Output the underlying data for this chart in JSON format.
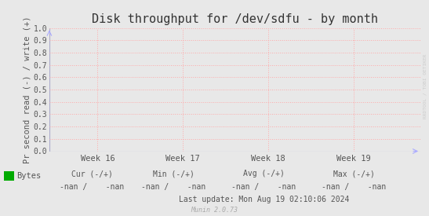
{
  "title": "Disk throughput for /dev/sdfu - by month",
  "ylabel": "Pr second read (-) / write (+)",
  "ylim": [
    0.0,
    1.0
  ],
  "yticks": [
    0.0,
    0.1,
    0.2,
    0.3,
    0.4,
    0.5,
    0.6,
    0.7,
    0.8,
    0.9,
    1.0
  ],
  "xtick_labels": [
    "Week 16",
    "Week 17",
    "Week 18",
    "Week 19"
  ],
  "background_color": "#e8e8e8",
  "plot_bg_color": "#e8e8e8",
  "grid_color": "#ffaaaa",
  "axis_color": "#bbbbbb",
  "title_fontsize": 11,
  "ylabel_fontsize": 7.5,
  "legend_label": "Bytes",
  "legend_color": "#00aa00",
  "watermark": "RRDTOOL / TOBI OETIKER",
  "munin_text": "Munin 2.0.73",
  "footer_cur_label": "Cur (-/+)",
  "footer_cur_val": "-nan /    -nan",
  "footer_min_label": "Min (-/+)",
  "footer_min_val": "-nan /    -nan",
  "footer_avg_label": "Avg (-/+)",
  "footer_avg_val": "-nan /    -nan",
  "footer_max_label": "Max (-/+)",
  "footer_max_val": "-nan /    -nan",
  "last_update": "Last update: Mon Aug 19 02:10:06 2024",
  "arrow_color": "#aaaaff",
  "text_color": "#555555"
}
